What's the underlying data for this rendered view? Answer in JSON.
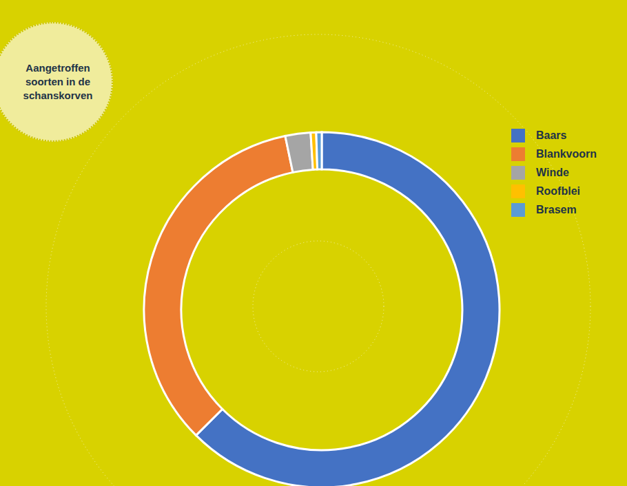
{
  "chart_data": {
    "type": "pie",
    "title": "Aangetroffen soorten in de schanskorven",
    "categories": [
      "Baars",
      "Blankvoorn",
      "Winde",
      "Roofblei",
      "Brasem"
    ],
    "values": [
      62.5,
      34.2,
      2.3,
      0.5,
      0.5
    ],
    "colors": [
      "#4472c4",
      "#ed7d31",
      "#a5a5a5",
      "#ffc000",
      "#5b9bd5"
    ],
    "legend": "right"
  }
}
